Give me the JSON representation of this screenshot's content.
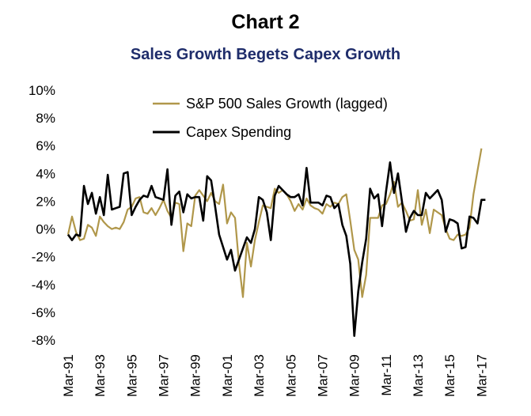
{
  "chart_data": {
    "type": "line",
    "title": "Chart 2",
    "subtitle": "Sales Growth Begets Capex Growth",
    "xlabel": "",
    "ylabel": "",
    "ylim": [
      -8,
      10
    ],
    "yticks": [
      "10%",
      "8%",
      "6%",
      "4%",
      "2%",
      "0%",
      "-2%",
      "-4%",
      "-6%",
      "-8%"
    ],
    "yticks_values": [
      10,
      8,
      6,
      4,
      2,
      0,
      -2,
      -4,
      -6,
      -8
    ],
    "xlim": [
      1991.17,
      2017.25
    ],
    "xticks": [
      "Mar-91",
      "Mar-93",
      "Mar-95",
      "Mar-97",
      "Mar-99",
      "Mar-01",
      "Mar-03",
      "Mar-05",
      "Mar-07",
      "Mar-09",
      "Mar-11",
      "Mar-13",
      "Mar-15",
      "Mar-17"
    ],
    "xticks_values": [
      1991.17,
      1993.17,
      1995.17,
      1997.17,
      1999.17,
      2001.17,
      2003.17,
      2005.17,
      2007.17,
      2009.17,
      2011.17,
      2013.17,
      2015.17,
      2017.17
    ],
    "grid": false,
    "legend_position": "top-left",
    "series": [
      {
        "name": "S&P 500 Sales Growth (lagged)",
        "color": "#b0974a",
        "points": [
          [
            1991.17,
            -0.4
          ],
          [
            1991.42,
            0.9
          ],
          [
            1991.67,
            -0.2
          ],
          [
            1991.92,
            -0.8
          ],
          [
            1992.17,
            -0.7
          ],
          [
            1992.42,
            0.3
          ],
          [
            1992.67,
            0.1
          ],
          [
            1992.92,
            -0.5
          ],
          [
            1993.17,
            0.9
          ],
          [
            1993.42,
            0.5
          ],
          [
            1993.67,
            0.2
          ],
          [
            1993.92,
            0.0
          ],
          [
            1994.17,
            0.1
          ],
          [
            1994.42,
            0.0
          ],
          [
            1994.67,
            0.5
          ],
          [
            1994.92,
            1.4
          ],
          [
            1995.17,
            1.6
          ],
          [
            1995.42,
            2.2
          ],
          [
            1995.67,
            2.3
          ],
          [
            1995.92,
            1.2
          ],
          [
            1996.17,
            1.1
          ],
          [
            1996.42,
            1.5
          ],
          [
            1996.67,
            1.0
          ],
          [
            1996.92,
            1.5
          ],
          [
            1997.17,
            2.1
          ],
          [
            1997.42,
            1.3
          ],
          [
            1997.67,
            0.8
          ],
          [
            1997.92,
            1.9
          ],
          [
            1998.17,
            1.8
          ],
          [
            1998.42,
            -1.6
          ],
          [
            1998.67,
            0.4
          ],
          [
            1998.92,
            0.2
          ],
          [
            1999.17,
            2.4
          ],
          [
            1999.42,
            2.8
          ],
          [
            1999.67,
            2.4
          ],
          [
            1999.92,
            2.0
          ],
          [
            2000.17,
            2.6
          ],
          [
            2000.42,
            2.0
          ],
          [
            2000.67,
            1.8
          ],
          [
            2000.92,
            3.2
          ],
          [
            2001.17,
            0.4
          ],
          [
            2001.42,
            1.2
          ],
          [
            2001.67,
            0.8
          ],
          [
            2001.92,
            -2.5
          ],
          [
            2002.17,
            -4.9
          ],
          [
            2002.42,
            -1.0
          ],
          [
            2002.67,
            -2.7
          ],
          [
            2002.92,
            -0.8
          ],
          [
            2003.17,
            0.5
          ],
          [
            2003.42,
            1.7
          ],
          [
            2003.67,
            1.6
          ],
          [
            2003.92,
            1.5
          ],
          [
            2004.17,
            2.9
          ],
          [
            2004.42,
            2.6
          ],
          [
            2004.67,
            2.8
          ],
          [
            2004.92,
            2.5
          ],
          [
            2005.17,
            2.0
          ],
          [
            2005.42,
            1.3
          ],
          [
            2005.67,
            1.8
          ],
          [
            2005.92,
            1.4
          ],
          [
            2006.17,
            2.2
          ],
          [
            2006.42,
            1.7
          ],
          [
            2006.67,
            1.5
          ],
          [
            2006.92,
            1.4
          ],
          [
            2007.17,
            1.1
          ],
          [
            2007.42,
            1.8
          ],
          [
            2007.67,
            1.6
          ],
          [
            2007.92,
            1.9
          ],
          [
            2008.17,
            1.8
          ],
          [
            2008.42,
            2.3
          ],
          [
            2008.67,
            2.5
          ],
          [
            2008.92,
            0.6
          ],
          [
            2009.17,
            -1.5
          ],
          [
            2009.42,
            -2.2
          ],
          [
            2009.67,
            -4.9
          ],
          [
            2009.92,
            -3.3
          ],
          [
            2010.17,
            0.8
          ],
          [
            2010.42,
            0.8
          ],
          [
            2010.67,
            0.8
          ],
          [
            2010.92,
            1.7
          ],
          [
            2011.17,
            1.8
          ],
          [
            2011.42,
            2.5
          ],
          [
            2011.67,
            3.4
          ],
          [
            2011.92,
            1.6
          ],
          [
            2012.17,
            1.9
          ],
          [
            2012.42,
            1.3
          ],
          [
            2012.67,
            0.6
          ],
          [
            2012.92,
            0.7
          ],
          [
            2013.17,
            2.8
          ],
          [
            2013.42,
            0.3
          ],
          [
            2013.67,
            1.4
          ],
          [
            2013.92,
            -0.3
          ],
          [
            2014.17,
            1.4
          ],
          [
            2014.42,
            1.2
          ],
          [
            2014.67,
            1.0
          ],
          [
            2014.92,
            0.0
          ],
          [
            2015.17,
            -0.7
          ],
          [
            2015.42,
            -0.8
          ],
          [
            2015.67,
            -0.4
          ],
          [
            2015.92,
            -0.5
          ],
          [
            2016.17,
            -0.4
          ],
          [
            2016.42,
            0.1
          ],
          [
            2016.67,
            2.5
          ],
          [
            2016.92,
            4.2
          ],
          [
            2017.17,
            5.8
          ]
        ]
      },
      {
        "name": "Capex Spending",
        "color": "#000000",
        "points": [
          [
            1991.17,
            -0.4
          ],
          [
            1991.42,
            -0.8
          ],
          [
            1991.67,
            -0.4
          ],
          [
            1991.92,
            -0.5
          ],
          [
            1992.17,
            3.1
          ],
          [
            1992.42,
            1.8
          ],
          [
            1992.67,
            2.6
          ],
          [
            1992.92,
            1.1
          ],
          [
            1993.17,
            2.3
          ],
          [
            1993.42,
            1.0
          ],
          [
            1993.67,
            3.9
          ],
          [
            1993.92,
            1.4
          ],
          [
            1994.17,
            1.5
          ],
          [
            1994.42,
            1.6
          ],
          [
            1994.67,
            4.0
          ],
          [
            1994.92,
            4.1
          ],
          [
            1995.17,
            1.0
          ],
          [
            1995.42,
            1.6
          ],
          [
            1995.67,
            2.1
          ],
          [
            1995.92,
            2.4
          ],
          [
            1996.17,
            2.3
          ],
          [
            1996.42,
            3.1
          ],
          [
            1996.67,
            2.3
          ],
          [
            1996.92,
            2.2
          ],
          [
            1997.17,
            2.1
          ],
          [
            1997.42,
            4.3
          ],
          [
            1997.67,
            0.3
          ],
          [
            1997.92,
            2.4
          ],
          [
            1998.17,
            2.7
          ],
          [
            1998.42,
            1.2
          ],
          [
            1998.67,
            2.5
          ],
          [
            1998.92,
            2.2
          ],
          [
            1999.17,
            2.3
          ],
          [
            1999.42,
            2.3
          ],
          [
            1999.67,
            0.6
          ],
          [
            1999.92,
            3.8
          ],
          [
            2000.17,
            3.5
          ],
          [
            2000.42,
            1.6
          ],
          [
            2000.67,
            -0.4
          ],
          [
            2000.92,
            -1.3
          ],
          [
            2001.17,
            -2.2
          ],
          [
            2001.42,
            -1.5
          ],
          [
            2001.67,
            -3.0
          ],
          [
            2001.92,
            -2.2
          ],
          [
            2002.17,
            -1.4
          ],
          [
            2002.42,
            -0.6
          ],
          [
            2002.67,
            -1.0
          ],
          [
            2002.92,
            0.0
          ],
          [
            2003.17,
            2.3
          ],
          [
            2003.42,
            2.1
          ],
          [
            2003.67,
            1.2
          ],
          [
            2003.92,
            -0.8
          ],
          [
            2004.17,
            2.4
          ],
          [
            2004.42,
            3.1
          ],
          [
            2004.67,
            2.8
          ],
          [
            2004.92,
            2.5
          ],
          [
            2005.17,
            2.3
          ],
          [
            2005.42,
            2.3
          ],
          [
            2005.67,
            2.5
          ],
          [
            2005.92,
            1.7
          ],
          [
            2006.17,
            4.4
          ],
          [
            2006.42,
            1.9
          ],
          [
            2006.67,
            1.9
          ],
          [
            2006.92,
            1.9
          ],
          [
            2007.17,
            1.7
          ],
          [
            2007.42,
            2.4
          ],
          [
            2007.67,
            2.3
          ],
          [
            2007.92,
            1.5
          ],
          [
            2008.17,
            1.8
          ],
          [
            2008.42,
            0.3
          ],
          [
            2008.67,
            -0.5
          ],
          [
            2008.92,
            -2.5
          ],
          [
            2009.17,
            -7.7
          ],
          [
            2009.42,
            -4.5
          ],
          [
            2009.67,
            -2.4
          ],
          [
            2009.92,
            -0.7
          ],
          [
            2010.17,
            2.9
          ],
          [
            2010.42,
            2.2
          ],
          [
            2010.67,
            2.5
          ],
          [
            2010.92,
            0.2
          ],
          [
            2011.17,
            2.7
          ],
          [
            2011.42,
            4.8
          ],
          [
            2011.67,
            2.6
          ],
          [
            2011.92,
            4.0
          ],
          [
            2012.17,
            2.0
          ],
          [
            2012.42,
            -0.2
          ],
          [
            2012.67,
            0.8
          ],
          [
            2012.92,
            1.3
          ],
          [
            2013.17,
            1.0
          ],
          [
            2013.42,
            1.0
          ],
          [
            2013.67,
            2.6
          ],
          [
            2013.92,
            2.2
          ],
          [
            2014.17,
            2.5
          ],
          [
            2014.42,
            2.8
          ],
          [
            2014.67,
            2.1
          ],
          [
            2014.92,
            -0.2
          ],
          [
            2015.17,
            0.7
          ],
          [
            2015.42,
            0.6
          ],
          [
            2015.67,
            0.4
          ],
          [
            2015.92,
            -1.4
          ],
          [
            2016.17,
            -1.3
          ],
          [
            2016.42,
            0.9
          ],
          [
            2016.67,
            0.8
          ],
          [
            2016.92,
            0.4
          ],
          [
            2017.17,
            2.1
          ],
          [
            2017.42,
            2.1
          ]
        ]
      }
    ]
  }
}
